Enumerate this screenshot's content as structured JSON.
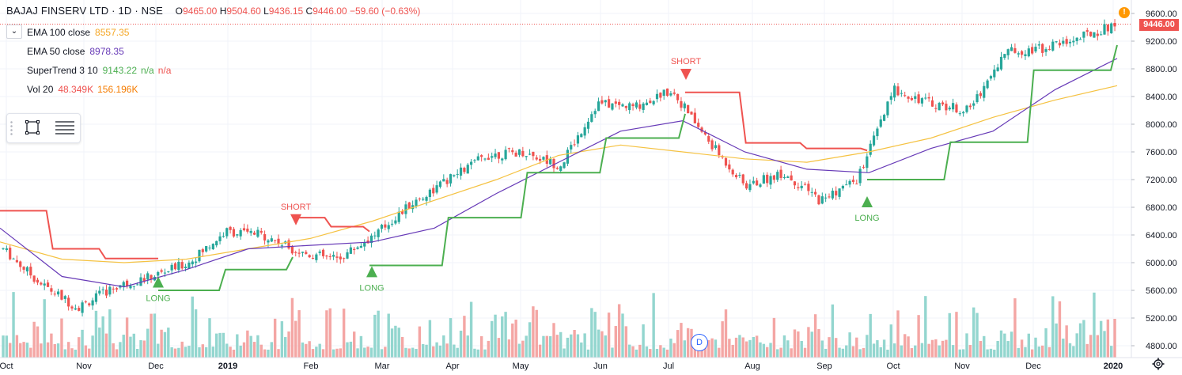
{
  "header": {
    "symbol": "BAJAJ FINSERV LTD · 1D · NSE",
    "open_label": "O",
    "open": "9465.00",
    "high_label": "H",
    "high": "9504.60",
    "low_label": "L",
    "low": "9436.15",
    "close_label": "C",
    "close": "9446.00",
    "change": "−59.60 (−0.63%)"
  },
  "indicators": [
    {
      "name": "EMA 100 close",
      "values": [
        "8557.35"
      ],
      "colors": [
        "#f5a623"
      ]
    },
    {
      "name": "EMA 50 close",
      "values": [
        "8978.35"
      ],
      "colors": [
        "#673ab7"
      ]
    },
    {
      "name": "SuperTrend 3 10",
      "values": [
        "9143.22",
        "n/a",
        "n/a"
      ],
      "colors": [
        "#4caf50",
        "#4caf50",
        "#ef5350"
      ]
    },
    {
      "name": "Vol 20",
      "values": [
        "48.349K",
        "156.196K"
      ],
      "colors": [
        "#ef5350",
        "#f57c00"
      ]
    }
  ],
  "last_price_tag": "9446.00",
  "info_badge": "!",
  "dividend_badge": "D",
  "colors": {
    "up": "#26a69a",
    "down": "#ef5350",
    "ema100": "#f5c242",
    "ema50": "#673ab7",
    "st_up": "#4caf50",
    "st_down": "#ef5350"
  },
  "icons": [
    "chevron-down-icon",
    "rectangle-icon",
    "lines-icon",
    "info-icon",
    "settings-icon"
  ],
  "chart_data": {
    "type": "line",
    "y_ticks": [
      9600,
      9200,
      8800,
      8400,
      8000,
      7600,
      7200,
      6800,
      6400,
      6000,
      5600,
      5200,
      4800
    ],
    "x_ticks": [
      "Oct",
      "Nov",
      "Dec",
      "2019",
      "Feb",
      "Mar",
      "Apr",
      "May",
      "Jun",
      "Jul",
      "Aug",
      "Sep",
      "Oct",
      "Nov",
      "Dec",
      "2020"
    ],
    "ylim": [
      4650,
      9800
    ],
    "price_path": [
      [
        "Oct",
        6200
      ],
      [
        "Oct",
        5700
      ],
      [
        "Nov",
        5350
      ],
      [
        "Nov",
        5650
      ],
      [
        "Dec",
        5800
      ],
      [
        "Dec",
        6000
      ],
      [
        "2019",
        6450
      ],
      [
        "2019",
        6400
      ],
      [
        "Feb",
        6150
      ],
      [
        "Feb",
        6050
      ],
      [
        "Mar",
        6400
      ],
      [
        "Mar",
        6850
      ],
      [
        "Apr",
        7200
      ],
      [
        "Apr",
        7550
      ],
      [
        "May",
        7600
      ],
      [
        "May",
        7400
      ],
      [
        "Jun",
        8300
      ],
      [
        "Jun",
        8250
      ],
      [
        "Jul",
        8500
      ],
      [
        "Jul",
        7750
      ],
      [
        "Aug",
        7100
      ],
      [
        "Aug",
        7300
      ],
      [
        "Sep",
        6900
      ],
      [
        "Sep",
        7200
      ],
      [
        "Oct",
        8500
      ],
      [
        "Oct",
        8300
      ],
      [
        "Nov",
        8200
      ],
      [
        "Nov",
        9050
      ],
      [
        "Dec",
        9100
      ],
      [
        "Dec",
        9250
      ],
      [
        "2020",
        9446
      ]
    ],
    "ema50": [
      6500,
      5800,
      5650,
      5900,
      6200,
      6250,
      6300,
      6500,
      7000,
      7450,
      7900,
      8050,
      7600,
      7350,
      7300,
      7650,
      7900,
      8500,
      8950
    ],
    "ema100": [
      6300,
      6050,
      6000,
      6050,
      6200,
      6350,
      6600,
      6900,
      7200,
      7550,
      7700,
      7600,
      7500,
      7450,
      7600,
      7800,
      8100,
      8350,
      8557
    ],
    "supertrend_segments": [
      {
        "direction": "down",
        "points": [
          [
            "Oct",
            6750
          ],
          [
            "Oct",
            6200
          ],
          [
            "Nov",
            6060
          ],
          [
            "Dec",
            6060
          ]
        ]
      },
      {
        "direction": "up",
        "points": [
          [
            "Dec",
            5600
          ],
          [
            "2019",
            5900
          ],
          [
            "Feb",
            6080
          ]
        ]
      },
      {
        "direction": "down",
        "points": [
          [
            "Feb",
            6650
          ],
          [
            "Feb",
            6520
          ],
          [
            "Mar",
            6450
          ]
        ]
      },
      {
        "direction": "up",
        "points": [
          [
            "Mar",
            5960
          ],
          [
            "Apr",
            6650
          ],
          [
            "May",
            7300
          ],
          [
            "Jun",
            7800
          ],
          [
            "Jul",
            8150
          ]
        ]
      },
      {
        "direction": "down",
        "points": [
          [
            "Jul",
            8460
          ],
          [
            "Aug",
            7730
          ],
          [
            "Sep",
            7650
          ],
          [
            "Oct",
            7620
          ]
        ]
      },
      {
        "direction": "up",
        "points": [
          [
            "Oct",
            7200
          ],
          [
            "Nov",
            7740
          ],
          [
            "Dec",
            8780
          ],
          [
            "2020",
            9143
          ]
        ]
      }
    ],
    "signals": [
      {
        "label": "LONG",
        "date": "Dec",
        "price": 5720
      },
      {
        "label": "SHORT",
        "date": "Feb",
        "price": 6620
      },
      {
        "label": "LONG",
        "date": "Mar",
        "price": 5870
      },
      {
        "label": "SHORT",
        "date": "Jul",
        "price": 8720
      },
      {
        "label": "LONG",
        "date": "Sep",
        "price": 6880
      }
    ],
    "volume": {
      "series": "Vol 20",
      "unit": "K",
      "last": 48.349,
      "ma": 156.196
    }
  }
}
